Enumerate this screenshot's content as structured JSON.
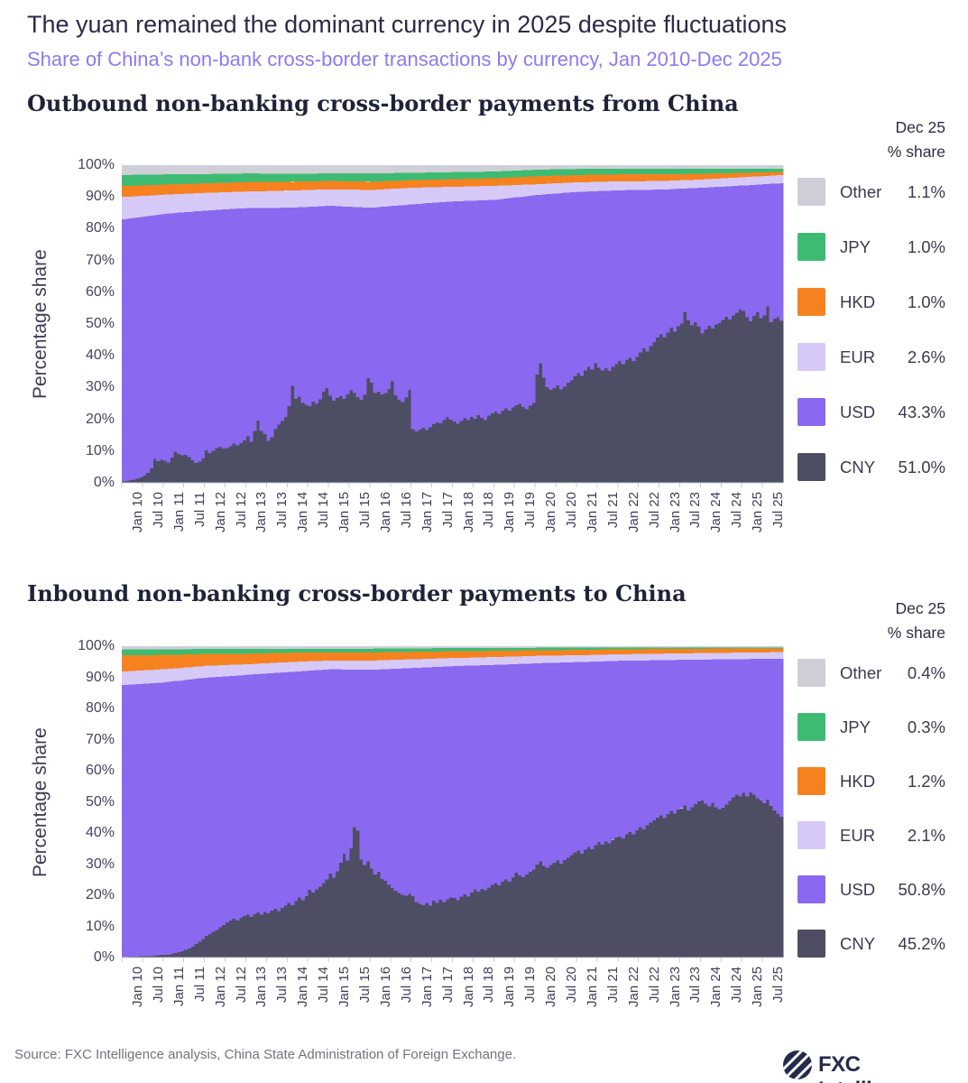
{
  "header": {
    "title": "The yuan remained the dominant currency in 2025 despite fluctuations",
    "subtitle": "Share of China’s non-bank cross-border transactions by currency, Jan 2010-Dec 2025"
  },
  "colors": {
    "CNY": "#4d4d63",
    "USD": "#8a68ef",
    "EUR": "#d6c9f8",
    "HKD": "#f6821f",
    "JPY": "#3ebb72",
    "Other": "#cfcfd8",
    "accent_subtitle": "#8b7bf3",
    "title_text": "#2b2b47",
    "axis_text": "#44445e",
    "axis_line": "#c9ccd6",
    "logo_navy": "#262b4b"
  },
  "charts": [
    {
      "heading": "Outbound non-banking cross-border payments from China",
      "legend_header": {
        "line1": "Dec 25",
        "line2": "% share"
      },
      "ylabel": "Percentage share",
      "legend": [
        {
          "name": "Other",
          "value": "1.1%",
          "color": "#cfcfd8"
        },
        {
          "name": "JPY",
          "value": "1.0%",
          "color": "#3ebb72"
        },
        {
          "name": "HKD",
          "value": "1.0%",
          "color": "#f6821f"
        },
        {
          "name": "EUR",
          "value": "2.6%",
          "color": "#d6c9f8"
        },
        {
          "name": "USD",
          "value": "43.3%",
          "color": "#8a68ef"
        },
        {
          "name": "CNY",
          "value": "51.0%",
          "color": "#4d4d63"
        }
      ],
      "y_axis_ticks": [
        0,
        10,
        20,
        30,
        40,
        50,
        60,
        70,
        80,
        90,
        100
      ]
    },
    {
      "heading": "Inbound non-banking cross-border payments to China",
      "legend_header": {
        "line1": "Dec 25",
        "line2": "% share"
      },
      "ylabel": "Percentage share",
      "legend": [
        {
          "name": "Other",
          "value": "0.4%",
          "color": "#cfcfd8"
        },
        {
          "name": "JPY",
          "value": "0.3%",
          "color": "#3ebb72"
        },
        {
          "name": "HKD",
          "value": "1.2%",
          "color": "#f6821f"
        },
        {
          "name": "EUR",
          "value": "2.1%",
          "color": "#d6c9f8"
        },
        {
          "name": "USD",
          "value": "50.8%",
          "color": "#8a68ef"
        },
        {
          "name": "CNY",
          "value": "45.2%",
          "color": "#4d4d63"
        }
      ],
      "y_axis_ticks": [
        0,
        10,
        20,
        30,
        40,
        50,
        60,
        70,
        80,
        90,
        100
      ]
    }
  ],
  "chart_data": [
    {
      "type": "bar",
      "subtype": "100pct-stacked-monthly",
      "title": "Outbound non-banking cross-border payments from China",
      "xlabel": "",
      "ylabel": "Percentage share",
      "ylim": [
        0,
        100
      ],
      "period": {
        "start": "Jan 2010",
        "end": "Dec 2025",
        "n_months": 192
      },
      "x_tick_labels": [
        "Jan 10",
        "Jul 10",
        "Jan 11",
        "Jul 11",
        "Jan 12",
        "Jul 12",
        "Jan 13",
        "Jul 13",
        "Jan 14",
        "Jul 14",
        "Jan 15",
        "Jul 15",
        "Jan 16",
        "Jul 16",
        "Jan 17",
        "Jul 17",
        "Jan 18",
        "Jul 18",
        "Jan 19",
        "Jul 19",
        "Jan 20",
        "Jul 20",
        "Jan 21",
        "Jul 21",
        "Jan 22",
        "Jul 22",
        "Jan 23",
        "Jul 23",
        "Jan 24",
        "Jul 24",
        "Jan 25",
        "Jul 25"
      ],
      "x_tick_months": [
        0,
        6,
        12,
        18,
        24,
        30,
        36,
        42,
        48,
        54,
        60,
        66,
        72,
        78,
        84,
        90,
        96,
        102,
        108,
        114,
        120,
        126,
        132,
        138,
        144,
        150,
        156,
        162,
        168,
        174,
        180,
        186
      ],
      "stack_order_bottom_to_top": [
        "CNY",
        "USD",
        "EUR",
        "HKD",
        "JPY",
        "Other"
      ],
      "dec25_share": {
        "CNY": 51.0,
        "USD": 43.3,
        "EUR": 2.6,
        "HKD": 1.0,
        "JPY": 1.0,
        "Other": 1.1
      },
      "series": {
        "CNY": {
          "monthly": [
            0.4,
            0.6,
            0.8,
            1.0,
            1.3,
            1.7,
            2.3,
            3.1,
            4.6,
            7.6,
            6.8,
            7.3,
            7.0,
            6.4,
            7.9,
            9.8,
            9.1,
            8.6,
            8.8,
            8.1,
            7.1,
            6.2,
            6.7,
            7.7,
            10.3,
            9.4,
            10.1,
            10.9,
            11.4,
            10.8,
            11.0,
            11.5,
            12.3,
            11.8,
            12.5,
            13.3,
            14.7,
            12.9,
            16.3,
            19.6,
            16.4,
            15.4,
            13.2,
            14.3,
            16.9,
            18.3,
            19.5,
            20.7,
            24.1,
            30.6,
            26.4,
            27.1,
            25.2,
            24.6,
            24.2,
            25.5,
            24.8,
            26.3,
            28.7,
            29.9,
            27.4,
            25.8,
            26.7,
            27.3,
            26.4,
            27.9,
            29.1,
            28.2,
            27.0,
            26.2,
            27.7,
            32.9,
            31.6,
            28.2,
            28.7,
            27.8,
            28.3,
            29.5,
            31.9,
            27.6,
            26.2,
            25.4,
            26.9,
            29.3,
            16.9,
            16.2,
            16.8,
            17.3,
            16.6,
            17.5,
            18.5,
            19.1,
            18.8,
            19.7,
            20.7,
            19.9,
            19.3,
            18.6,
            19.5,
            20.3,
            19.8,
            20.7,
            20.2,
            21.3,
            20.4,
            19.8,
            21.1,
            21.9,
            22.5,
            21.8,
            22.7,
            23.5,
            22.8,
            23.7,
            24.5,
            24.9,
            23.8,
            23.2,
            24.3,
            25.1,
            34.1,
            37.6,
            33.1,
            30.1,
            29.2,
            29.9,
            30.7,
            29.4,
            30.3,
            31.5,
            32.3,
            33.5,
            34.5,
            33.6,
            35.3,
            36.5,
            35.6,
            37.7,
            36.2,
            35.4,
            36.1,
            35.2,
            36.5,
            37.3,
            38.3,
            37.4,
            38.7,
            39.3,
            38.4,
            39.7,
            41.1,
            42.3,
            41.4,
            43.1,
            44.3,
            45.7,
            46.7,
            45.8,
            47.3,
            48.9,
            47.6,
            49.3,
            50.1,
            53.7,
            51.2,
            49.6,
            50.5,
            49.1,
            47.0,
            48.3,
            49.5,
            48.6,
            49.9,
            50.3,
            51.3,
            52.3,
            51.4,
            52.7,
            53.5,
            54.5,
            54.1,
            52.2,
            50.9,
            52.5,
            53.7,
            51.8,
            52.7,
            55.5,
            50.5,
            51.7,
            52.1,
            51.0
          ]
        },
        "EUR": {
          "breakpoint_months": [
            0,
            12,
            24,
            36,
            48,
            60,
            72,
            84,
            96,
            108,
            120,
            132,
            144,
            156,
            168,
            180,
            191
          ],
          "values": [
            7.0,
            6.0,
            5.6,
            5.2,
            5.4,
            5.2,
            5.6,
            5.2,
            4.6,
            4.4,
            3.4,
            3.0,
            2.8,
            2.7,
            2.6,
            2.6,
            2.6
          ]
        },
        "HKD": {
          "breakpoint_months": [
            0,
            12,
            24,
            36,
            48,
            60,
            72,
            84,
            96,
            108,
            120,
            132,
            144,
            156,
            168,
            180,
            191
          ],
          "values": [
            3.4,
            3.2,
            3.0,
            3.0,
            2.8,
            2.6,
            2.6,
            2.4,
            2.4,
            2.4,
            2.5,
            2.3,
            2.2,
            2.1,
            1.8,
            1.4,
            1.0
          ]
        },
        "JPY": {
          "breakpoint_months": [
            0,
            12,
            24,
            36,
            48,
            60,
            72,
            84,
            96,
            108,
            120,
            132,
            144,
            156,
            168,
            180,
            191
          ],
          "values": [
            3.5,
            3.2,
            2.9,
            2.7,
            2.5,
            2.4,
            2.6,
            2.3,
            2.2,
            2.1,
            2.1,
            1.9,
            1.8,
            1.8,
            1.6,
            1.3,
            1.0
          ]
        },
        "Other": {
          "breakpoint_months": [
            0,
            12,
            24,
            36,
            48,
            60,
            72,
            84,
            96,
            108,
            120,
            132,
            144,
            156,
            168,
            180,
            191
          ],
          "values": [
            3.1,
            2.9,
            2.8,
            2.6,
            2.7,
            2.6,
            2.6,
            2.4,
            2.2,
            2.0,
            1.4,
            1.2,
            1.1,
            1.1,
            1.1,
            1.1,
            1.1
          ]
        },
        "USD": {
          "derived": "remainder to 100%"
        }
      }
    },
    {
      "type": "bar",
      "subtype": "100pct-stacked-monthly",
      "title": "Inbound non-banking cross-border payments to China",
      "xlabel": "",
      "ylabel": "Percentage share",
      "ylim": [
        0,
        100
      ],
      "period": {
        "start": "Jan 2010",
        "end": "Dec 2025",
        "n_months": 192
      },
      "x_tick_labels": [
        "Jan 10",
        "Jul 10",
        "Jan 11",
        "Jul 11",
        "Jan 12",
        "Jul 12",
        "Jan 13",
        "Jul 13",
        "Jan 14",
        "Jul 14",
        "Jan 15",
        "Jul 15",
        "Jan 16",
        "Jul 16",
        "Jan 17",
        "Jul 17",
        "Jan 18",
        "Jul 18",
        "Jan 19",
        "Jul 19",
        "Jan 20",
        "Jul 20",
        "Jan 21",
        "Jul 21",
        "Jan 22",
        "Jul 22",
        "Jan 23",
        "Jul 23",
        "Jan 24",
        "Jul 24",
        "Jan 25",
        "Jul 25"
      ],
      "x_tick_months": [
        0,
        6,
        12,
        18,
        24,
        30,
        36,
        42,
        48,
        54,
        60,
        66,
        72,
        78,
        84,
        90,
        96,
        102,
        108,
        114,
        120,
        126,
        132,
        138,
        144,
        150,
        156,
        162,
        168,
        174,
        180,
        186
      ],
      "stack_order_bottom_to_top": [
        "CNY",
        "USD",
        "EUR",
        "HKD",
        "JPY",
        "Other"
      ],
      "dec25_share": {
        "CNY": 45.2,
        "USD": 50.8,
        "EUR": 2.1,
        "HKD": 1.2,
        "JPY": 0.3,
        "Other": 0.4
      },
      "series": {
        "CNY": {
          "monthly": [
            0.2,
            0.2,
            0.3,
            0.3,
            0.3,
            0.4,
            0.4,
            0.4,
            0.5,
            0.6,
            0.7,
            0.8,
            0.8,
            0.9,
            1.1,
            1.4,
            1.7,
            2.1,
            2.5,
            2.9,
            3.5,
            4.3,
            5.1,
            5.9,
            6.9,
            7.5,
            8.3,
            8.9,
            9.7,
            10.5,
            11.3,
            11.9,
            12.5,
            11.9,
            12.7,
            13.3,
            13.7,
            13.0,
            13.9,
            14.5,
            13.8,
            14.7,
            14.2,
            15.1,
            15.7,
            14.9,
            15.9,
            16.7,
            17.5,
            16.8,
            18.1,
            19.3,
            18.4,
            19.7,
            21.7,
            20.8,
            21.9,
            22.7,
            23.9,
            25.1,
            26.9,
            25.6,
            27.7,
            30.5,
            33.3,
            31.2,
            35.1,
            41.9,
            40.7,
            31.5,
            29.7,
            30.9,
            28.5,
            26.6,
            27.5,
            25.2,
            24.7,
            23.4,
            22.3,
            21.4,
            20.7,
            20.2,
            19.8,
            20.5,
            19.7,
            17.8,
            17.2,
            16.8,
            17.5,
            16.6,
            18.3,
            17.6,
            18.5,
            17.8,
            18.7,
            19.3,
            19.1,
            18.4,
            19.5,
            20.3,
            19.6,
            20.9,
            21.9,
            21.2,
            22.1,
            21.6,
            22.5,
            23.3,
            23.9,
            23.2,
            24.3,
            25.1,
            24.4,
            25.7,
            27.3,
            26.4,
            25.8,
            26.7,
            27.5,
            28.3,
            29.9,
            30.9,
            29.4,
            28.8,
            29.7,
            30.5,
            31.1,
            30.2,
            31.3,
            32.1,
            32.9,
            33.7,
            34.3,
            33.4,
            34.7,
            35.5,
            34.8,
            36.1,
            37.1,
            36.2,
            37.3,
            36.6,
            37.9,
            38.5,
            38.9,
            38.2,
            39.5,
            40.3,
            39.6,
            40.9,
            41.9,
            41.2,
            42.5,
            43.3,
            44.1,
            44.9,
            45.7,
            44.8,
            46.1,
            47.1,
            46.2,
            47.5,
            47.9,
            48.9,
            47.2,
            48.3,
            49.3,
            50.1,
            50.5,
            49.4,
            48.6,
            49.7,
            48.2,
            47.6,
            48.1,
            49.1,
            50.3,
            51.5,
            52.3,
            51.7,
            52.9,
            51.8,
            53.1,
            52.3,
            51.2,
            50.5,
            49.5,
            50.7,
            48.7,
            47.3,
            46.1,
            45.2
          ]
        },
        "EUR": {
          "breakpoint_months": [
            0,
            12,
            24,
            36,
            48,
            60,
            72,
            84,
            96,
            108,
            120,
            132,
            144,
            156,
            168,
            180,
            191
          ],
          "values": [
            4.4,
            4.2,
            3.8,
            3.4,
            3.2,
            2.8,
            3.0,
            2.8,
            2.6,
            2.5,
            2.4,
            2.2,
            2.1,
            2.1,
            2.1,
            2.1,
            2.1
          ]
        },
        "HKD": {
          "breakpoint_months": [
            0,
            12,
            24,
            36,
            48,
            60,
            72,
            84,
            96,
            108,
            120,
            132,
            144,
            156,
            168,
            180,
            191
          ],
          "values": [
            5.2,
            4.6,
            3.8,
            3.4,
            3.0,
            2.6,
            2.6,
            2.4,
            2.2,
            2.0,
            1.8,
            1.7,
            1.6,
            1.5,
            1.4,
            1.3,
            1.2
          ]
        },
        "JPY": {
          "breakpoint_months": [
            0,
            12,
            24,
            36,
            48,
            60,
            72,
            84,
            96,
            108,
            120,
            132,
            144,
            156,
            168,
            180,
            191
          ],
          "values": [
            1.9,
            1.8,
            1.6,
            1.5,
            1.3,
            1.2,
            1.2,
            1.1,
            1.0,
            0.9,
            0.8,
            0.7,
            0.6,
            0.5,
            0.4,
            0.35,
            0.3
          ]
        },
        "Other": {
          "breakpoint_months": [
            0,
            12,
            24,
            36,
            48,
            60,
            72,
            84,
            96,
            108,
            120,
            132,
            144,
            156,
            168,
            180,
            191
          ],
          "values": [
            1.0,
            1.0,
            0.9,
            0.9,
            0.8,
            0.8,
            0.8,
            0.7,
            0.6,
            0.6,
            0.5,
            0.5,
            0.4,
            0.4,
            0.4,
            0.4,
            0.4
          ]
        },
        "USD": {
          "derived": "remainder to 100%"
        }
      }
    }
  ],
  "footer": {
    "source": "Source: FXC Intelligence analysis, China State Administration of Foreign Exchange.",
    "logo_text": "FXC Intelligence"
  }
}
